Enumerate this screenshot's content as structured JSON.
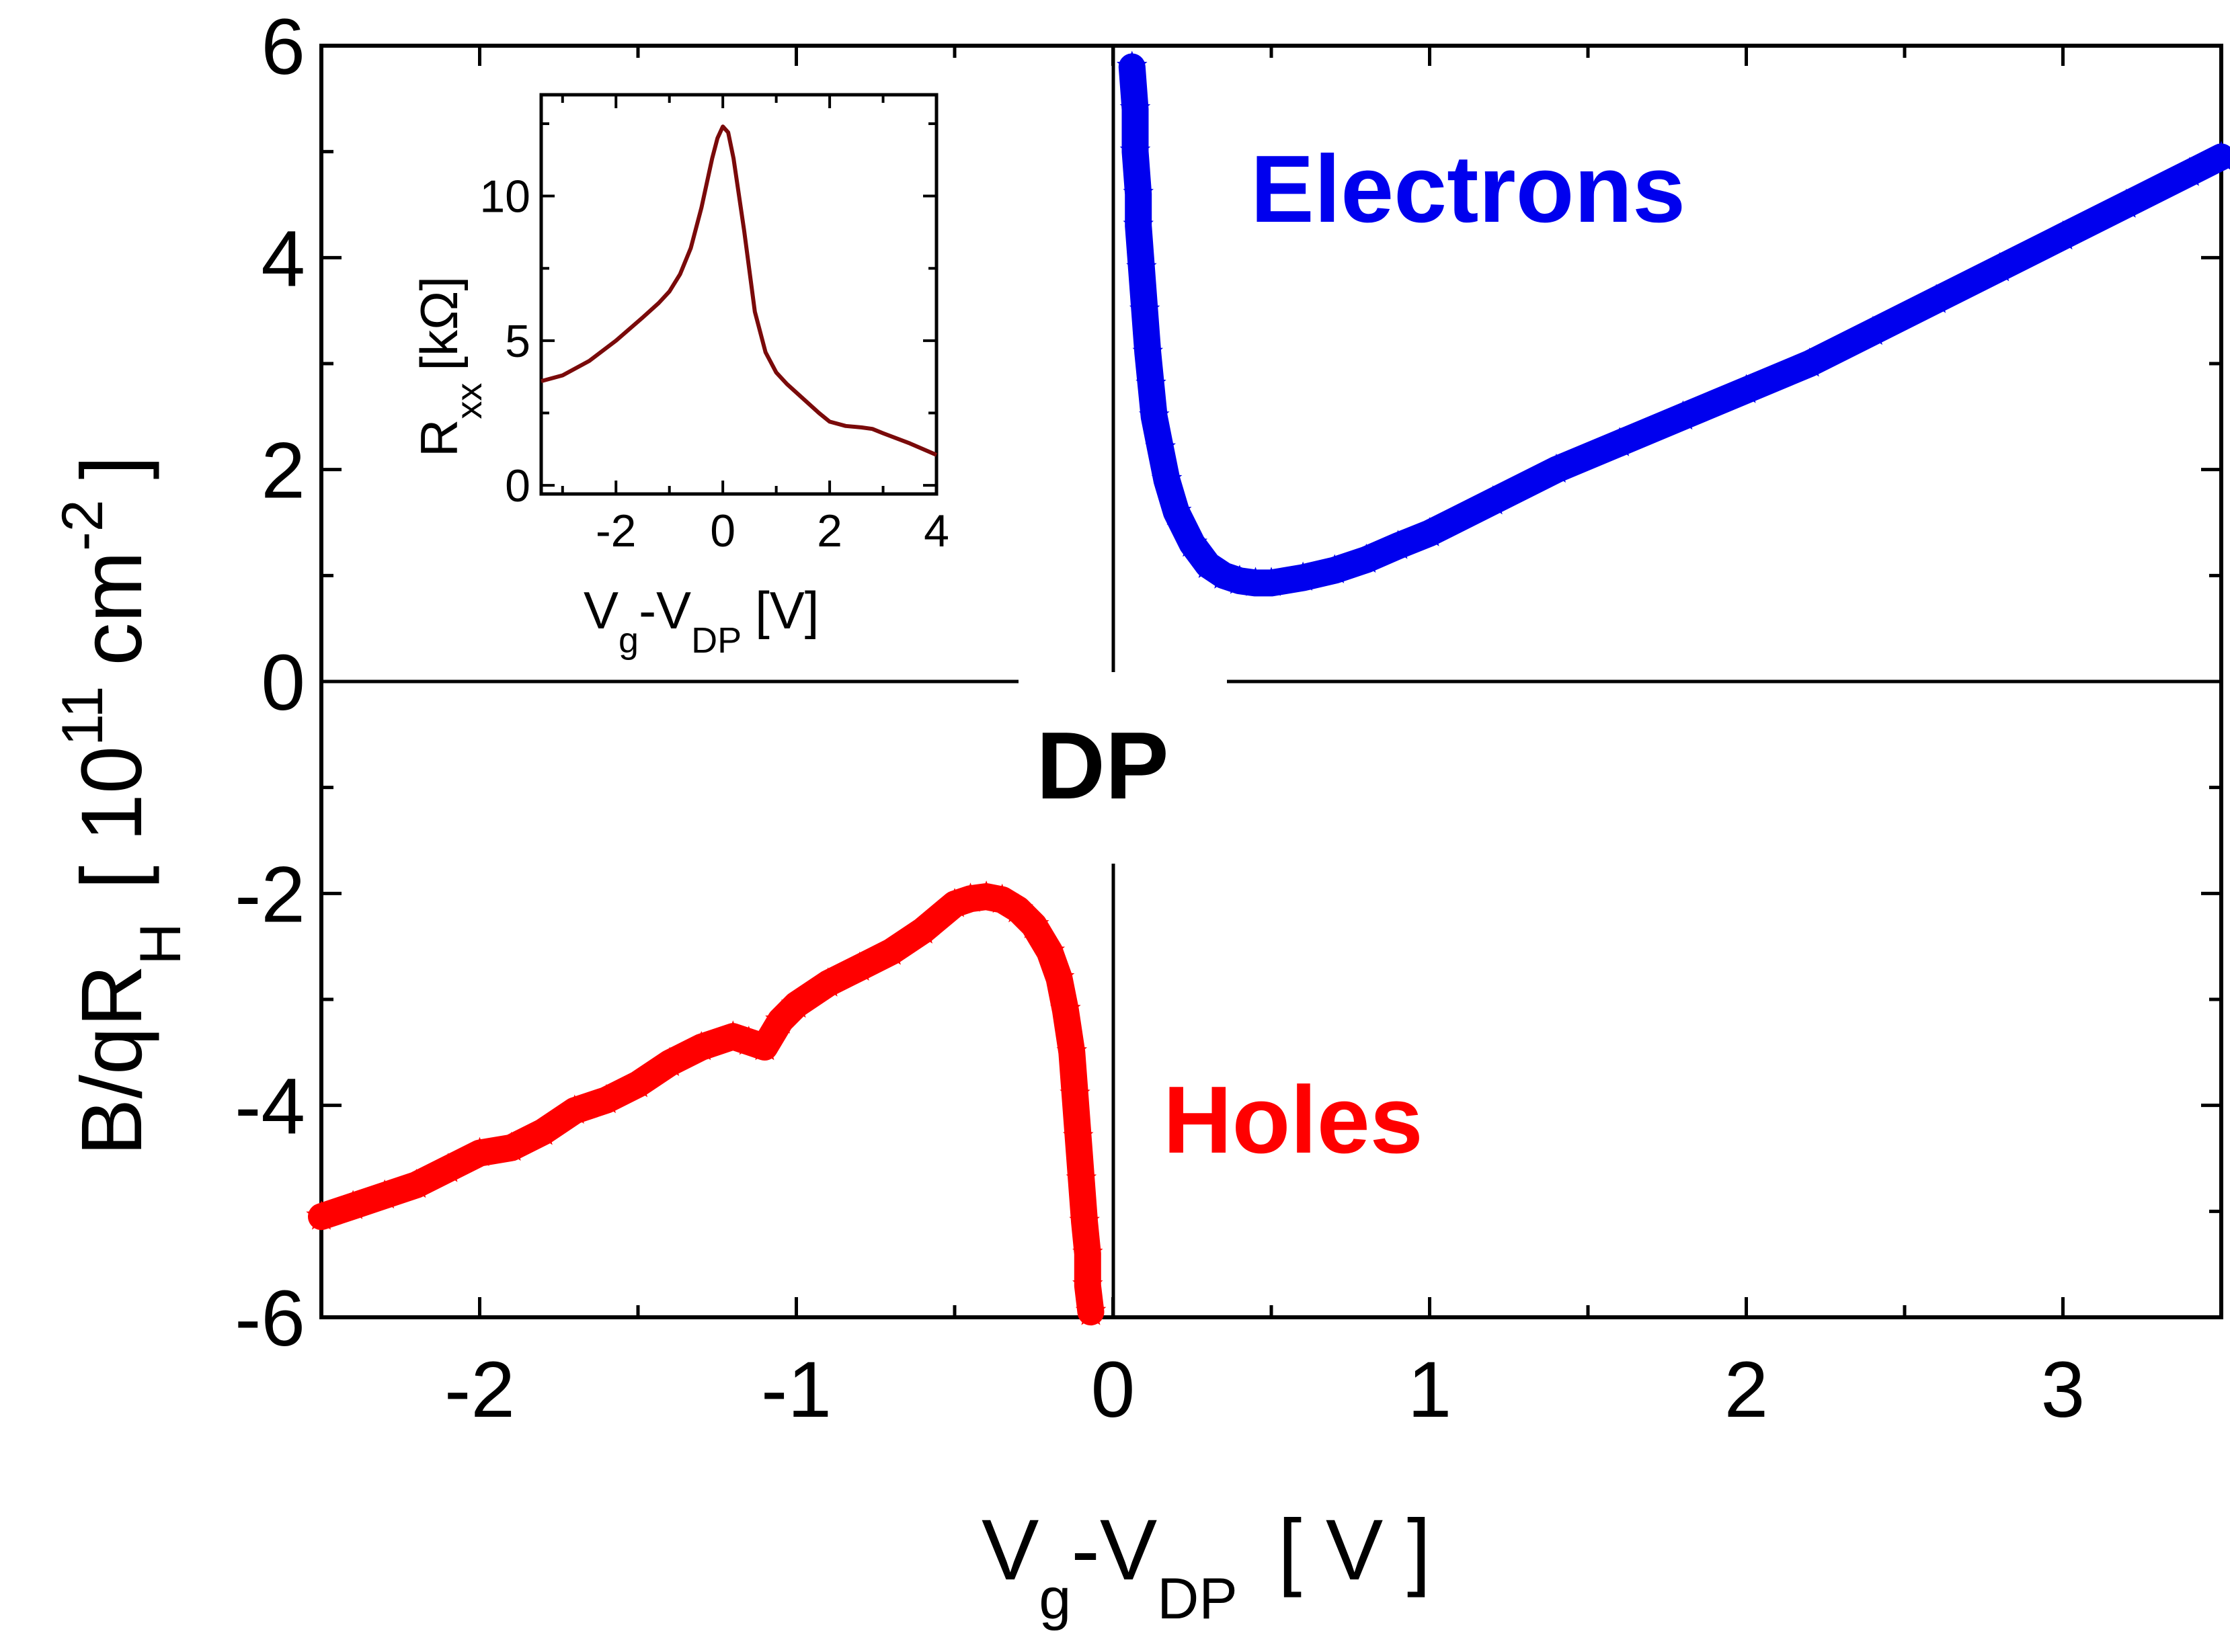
{
  "chart_data": [
    {
      "type": "scatter",
      "role": "main",
      "xlabel": {
        "main": "V",
        "sub1": "g",
        "mid": "-V",
        "sub2": "DP",
        "unit": "[ V ]"
      },
      "ylabel": {
        "main": "B/qR",
        "sub": "H",
        "unit_open": "[ 10",
        "sup1": "11",
        "unit_mid": "cm",
        "sup2": "-2",
        "unit_close": "]"
      },
      "xlim": [
        -2.5,
        3.5
      ],
      "ylim": [
        -6,
        6
      ],
      "xticks": [
        -2,
        -1,
        0,
        1,
        2,
        3
      ],
      "xtick_labels": [
        "-2",
        "-1",
        "0",
        "1",
        "2",
        "3"
      ],
      "yticks": [
        -6,
        -4,
        -2,
        0,
        2,
        4,
        6
      ],
      "ytick_labels": [
        "-6",
        "-4",
        "-2",
        "0",
        "2",
        "4",
        "6"
      ],
      "series": [
        {
          "name": "Electrons",
          "color": "#0000ee",
          "marker": "star",
          "x": [
            0.06,
            0.07,
            0.07,
            0.08,
            0.08,
            0.09,
            0.1,
            0.11,
            0.12,
            0.13,
            0.15,
            0.17,
            0.2,
            0.25,
            0.3,
            0.35,
            0.4,
            0.45,
            0.5,
            0.6,
            0.7,
            0.8,
            0.9,
            1.0,
            1.2,
            1.4,
            1.6,
            1.8,
            2.0,
            2.2,
            2.4,
            2.6,
            2.8,
            3.0,
            3.2,
            3.4,
            3.5
          ],
          "y": [
            5.8,
            5.4,
            5.0,
            4.6,
            4.3,
            3.9,
            3.5,
            3.1,
            2.8,
            2.5,
            2.2,
            1.9,
            1.6,
            1.3,
            1.1,
            1.0,
            0.95,
            0.93,
            0.93,
            0.98,
            1.05,
            1.15,
            1.28,
            1.4,
            1.7,
            2.0,
            2.25,
            2.5,
            2.75,
            3.0,
            3.3,
            3.6,
            3.9,
            4.2,
            4.5,
            4.8,
            4.95
          ]
        },
        {
          "name": "Holes",
          "color": "#ff0000",
          "marker": "star",
          "x": [
            -2.5,
            -2.4,
            -2.3,
            -2.2,
            -2.1,
            -2.0,
            -1.9,
            -1.8,
            -1.7,
            -1.6,
            -1.5,
            -1.4,
            -1.3,
            -1.2,
            -1.15,
            -1.1,
            -1.05,
            -1.0,
            -0.9,
            -0.8,
            -0.7,
            -0.6,
            -0.5,
            -0.45,
            -0.4,
            -0.35,
            -0.3,
            -0.25,
            -0.2,
            -0.17,
            -0.15,
            -0.13,
            -0.12,
            -0.11,
            -0.1,
            -0.09,
            -0.08,
            -0.08,
            -0.07
          ],
          "y": [
            -5.05,
            -4.95,
            -4.85,
            -4.75,
            -4.6,
            -4.45,
            -4.4,
            -4.25,
            -4.05,
            -3.95,
            -3.8,
            -3.6,
            -3.45,
            -3.35,
            -3.4,
            -3.45,
            -3.2,
            -3.05,
            -2.85,
            -2.7,
            -2.55,
            -2.35,
            -2.1,
            -2.05,
            -2.03,
            -2.06,
            -2.15,
            -2.3,
            -2.55,
            -2.8,
            -3.1,
            -3.5,
            -3.9,
            -4.3,
            -4.7,
            -5.1,
            -5.4,
            -5.7,
            -5.95
          ]
        }
      ],
      "annotations": {
        "electrons": "Electrons",
        "holes": "Holes",
        "dirac_point": "DP"
      }
    },
    {
      "type": "line",
      "role": "inset",
      "xlabel": {
        "main": "V",
        "sub1": "g",
        "mid": "-V",
        "sub2": "DP",
        "unit": "[V]"
      },
      "ylabel": {
        "main": "R",
        "sub": "xx",
        "unit": "[kΩ]"
      },
      "xlim": [
        -3.4,
        4
      ],
      "ylim": [
        -0.3,
        13.5
      ],
      "xticks": [
        -2,
        0,
        2,
        4
      ],
      "xtick_labels": [
        "-2",
        "0",
        "2",
        "4"
      ],
      "yticks": [
        0,
        5,
        10
      ],
      "ytick_labels": [
        "0",
        "5",
        "10"
      ],
      "series": [
        {
          "name": "Rxx",
          "color": "#7a0a0a",
          "x": [
            -3.4,
            -3.0,
            -2.5,
            -2.0,
            -1.5,
            -1.2,
            -1.0,
            -0.8,
            -0.6,
            -0.4,
            -0.2,
            -0.1,
            0.0,
            0.1,
            0.2,
            0.4,
            0.6,
            0.8,
            1.0,
            1.2,
            1.5,
            1.8,
            2.0,
            2.3,
            2.6,
            2.8,
            3.0,
            3.5,
            4.0
          ],
          "y": [
            3.6,
            3.8,
            4.3,
            5.0,
            5.8,
            6.3,
            6.7,
            7.3,
            8.2,
            9.6,
            11.3,
            12.0,
            12.4,
            12.2,
            11.3,
            8.8,
            6.0,
            4.6,
            3.9,
            3.5,
            3.0,
            2.5,
            2.2,
            2.05,
            2.0,
            1.95,
            1.8,
            1.45,
            1.05
          ]
        }
      ]
    }
  ]
}
